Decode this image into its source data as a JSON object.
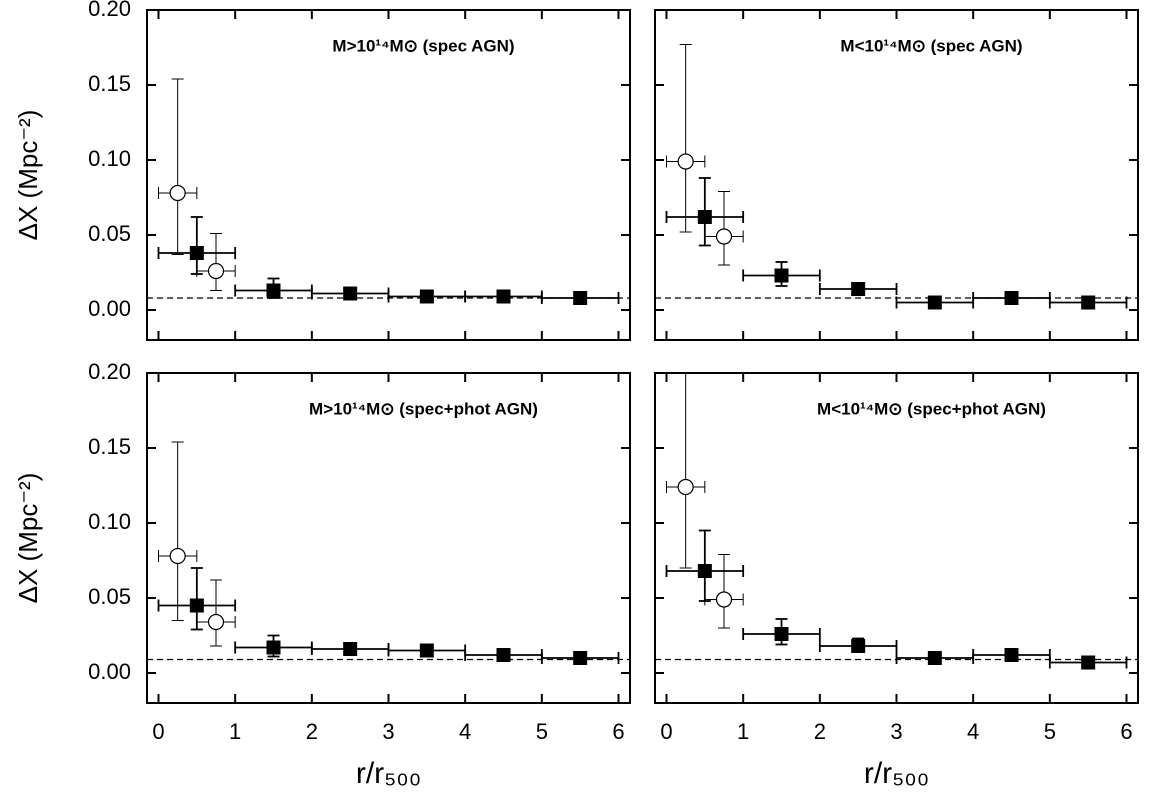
{
  "chart_data": [
    {
      "type": "scatter",
      "title": "M>10¹⁴M⊙ (spec AGN)",
      "ylabel": "ΔX (Mpc⁻²)",
      "xlim": [
        -0.15,
        6.15
      ],
      "ylim": [
        -0.02,
        0.2
      ],
      "xticks": [
        0,
        1,
        2,
        3,
        4,
        5,
        6
      ],
      "yticks": [
        {
          "value": 0,
          "label": "0.00"
        },
        0.05,
        {
          "value": 0.1,
          "label": "0.10"
        },
        0.15,
        {
          "value": 0.2,
          "label": "0.20"
        }
      ],
      "xticklabels": false,
      "yticklabels": true,
      "hline": 0.008,
      "series": [
        {
          "marker": "circle",
          "color": "#000000",
          "x": [
            0.25,
            0.75
          ],
          "xerr": [
            0.25,
            0.25
          ],
          "values": [
            0.078,
            0.026
          ],
          "ylow": [
            0.037,
            0.013
          ],
          "yhigh": [
            0.154,
            0.051
          ]
        },
        {
          "marker": "square",
          "color": "#000000",
          "x": [
            0.5,
            1.5,
            2.5,
            3.5,
            4.5,
            5.5
          ],
          "xerr": [
            0.5,
            0.5,
            0.5,
            0.5,
            0.5,
            0.5
          ],
          "values": [
            0.038,
            0.013,
            0.011,
            0.009,
            0.009,
            0.008
          ],
          "ylow": [
            0.024,
            0.008,
            0.009,
            0.008,
            0.008,
            0.007
          ],
          "yhigh": [
            0.062,
            0.021,
            0.013,
            0.01,
            0.01,
            0.009
          ]
        }
      ]
    },
    {
      "type": "scatter",
      "title": "M<10¹⁴M⊙ (spec AGN)",
      "xlim": [
        -0.15,
        6.15
      ],
      "ylim": [
        -0.02,
        0.2
      ],
      "xticks": [
        0,
        1,
        2,
        3,
        4,
        5,
        6
      ],
      "yticks": [
        0,
        0.05,
        0.1,
        0.15,
        0.2
      ],
      "xticklabels": false,
      "yticklabels": false,
      "hline": 0.008,
      "series": [
        {
          "marker": "circle",
          "color": "#000000",
          "x": [
            0.25,
            0.75
          ],
          "xerr": [
            0.25,
            0.25
          ],
          "values": [
            0.099,
            0.049
          ],
          "ylow": [
            0.052,
            0.03
          ],
          "yhigh": [
            0.177,
            0.079
          ]
        },
        {
          "marker": "square",
          "color": "#000000",
          "x": [
            0.5,
            1.5,
            2.5,
            3.5,
            4.5,
            5.5
          ],
          "xerr": [
            0.5,
            0.5,
            0.5,
            0.5,
            0.5,
            0.5
          ],
          "values": [
            0.062,
            0.023,
            0.014,
            0.005,
            0.008,
            0.005
          ],
          "ylow": [
            0.043,
            0.016,
            0.01,
            0.004,
            0.007,
            0.004
          ],
          "yhigh": [
            0.088,
            0.032,
            0.018,
            0.006,
            0.009,
            0.006
          ]
        }
      ]
    },
    {
      "type": "scatter",
      "title": "M>10¹⁴M⊙ (spec+phot AGN)",
      "ylabel": "ΔX (Mpc⁻²)",
      "xlabel": "r/r₅₀₀",
      "xlim": [
        -0.15,
        6.15
      ],
      "ylim": [
        -0.02,
        0.2
      ],
      "xticks": [
        0,
        1,
        2,
        3,
        4,
        5,
        6
      ],
      "yticks": [
        {
          "value": 0,
          "label": "0.00"
        },
        0.05,
        {
          "value": 0.1,
          "label": "0.10"
        },
        0.15,
        {
          "value": 0.2,
          "label": "0.20"
        }
      ],
      "xticklabels": true,
      "yticklabels": true,
      "hline": 0.009,
      "series": [
        {
          "marker": "circle",
          "color": "#000000",
          "x": [
            0.25,
            0.75
          ],
          "xerr": [
            0.25,
            0.25
          ],
          "values": [
            0.078,
            0.034
          ],
          "ylow": [
            0.035,
            0.018
          ],
          "yhigh": [
            0.154,
            0.062
          ]
        },
        {
          "marker": "square",
          "color": "#000000",
          "x": [
            0.5,
            1.5,
            2.5,
            3.5,
            4.5,
            5.5
          ],
          "xerr": [
            0.5,
            0.5,
            0.5,
            0.5,
            0.5,
            0.5
          ],
          "values": [
            0.045,
            0.017,
            0.016,
            0.015,
            0.012,
            0.01
          ],
          "ylow": [
            0.029,
            0.011,
            0.012,
            0.012,
            0.01,
            0.008
          ],
          "yhigh": [
            0.07,
            0.025,
            0.02,
            0.018,
            0.014,
            0.012
          ]
        }
      ]
    },
    {
      "type": "scatter",
      "title": "M<10¹⁴M⊙ (spec+phot AGN)",
      "xlabel": "r/r₅₀₀",
      "xlim": [
        -0.15,
        6.15
      ],
      "ylim": [
        -0.02,
        0.2
      ],
      "xticks": [
        0,
        1,
        2,
        3,
        4,
        5,
        6
      ],
      "yticks": [
        0,
        0.05,
        0.1,
        0.15,
        0.2
      ],
      "xticklabels": true,
      "yticklabels": false,
      "hline": 0.009,
      "series": [
        {
          "marker": "circle",
          "color": "#000000",
          "x": [
            0.25,
            0.75
          ],
          "xerr": [
            0.25,
            0.25
          ],
          "values": [
            0.124,
            0.049
          ],
          "ylow": [
            0.07,
            0.03
          ],
          "yhigh": [
            0.22,
            0.079
          ]
        },
        {
          "marker": "square",
          "color": "#000000",
          "x": [
            0.5,
            1.5,
            2.5,
            3.5,
            4.5,
            5.5
          ],
          "xerr": [
            0.5,
            0.5,
            0.5,
            0.5,
            0.5,
            0.5
          ],
          "values": [
            0.068,
            0.026,
            0.018,
            0.01,
            0.012,
            0.007
          ],
          "ylow": [
            0.048,
            0.019,
            0.014,
            0.009,
            0.01,
            0.006
          ],
          "yhigh": [
            0.095,
            0.036,
            0.023,
            0.011,
            0.014,
            0.009
          ]
        }
      ]
    }
  ]
}
